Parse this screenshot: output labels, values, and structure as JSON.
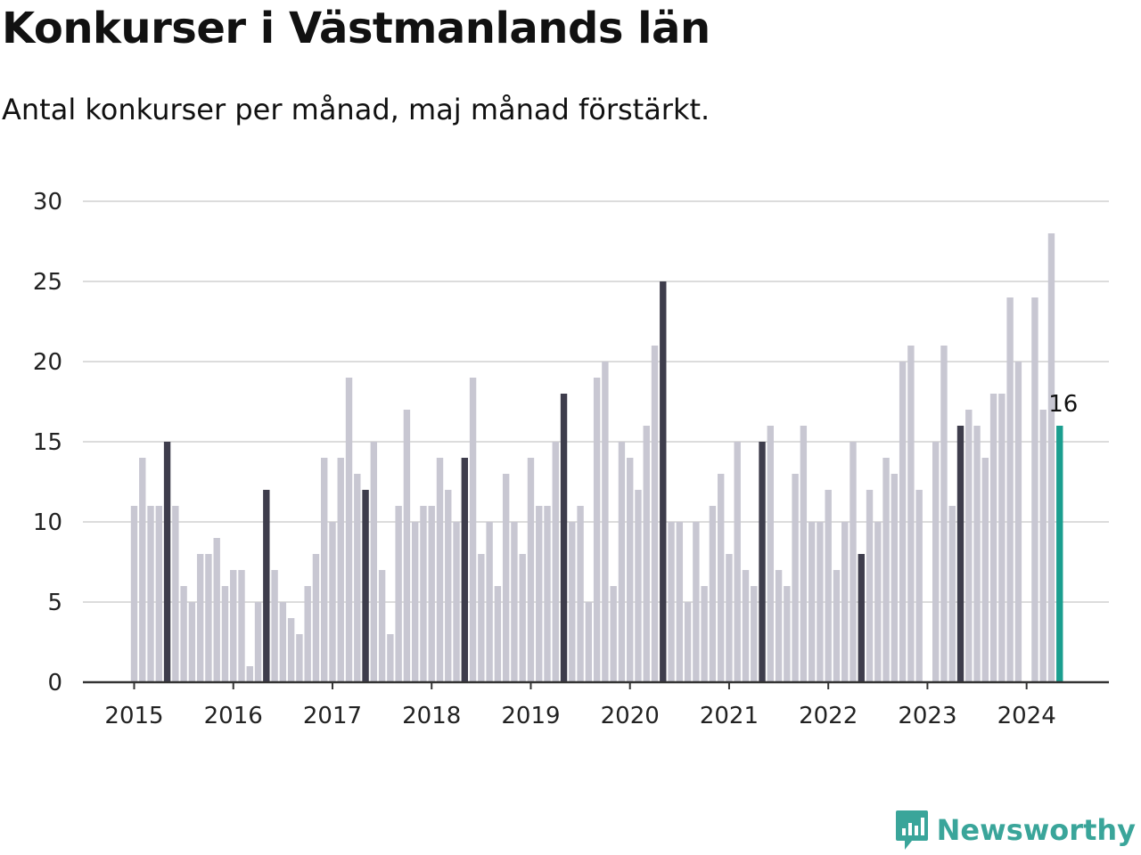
{
  "header": {
    "title": "Konkurser i Västmanlands län",
    "subtitle": "Antal konkurser per månad, maj månad förstärkt."
  },
  "brand": {
    "name": "Newsworthy",
    "icon": "newsworthy-logo-icon"
  },
  "colors": {
    "bar": "#c8c7d2",
    "highlight": "#3e3d4c",
    "current": "#1a9e8f",
    "grid": "#dcdcdc",
    "axis": "#333333",
    "brand": "#3aa59a"
  },
  "chart_data": {
    "type": "bar",
    "title": "Konkurser i Västmanlands län",
    "subtitle": "Antal konkurser per månad, maj månad förstärkt.",
    "xlabel": "",
    "ylabel": "",
    "ylim": [
      0,
      30
    ],
    "yticks": [
      "0",
      "5",
      "10",
      "15",
      "20",
      "25",
      "30"
    ],
    "xticks": [
      "2015",
      "2016",
      "2017",
      "2018",
      "2019",
      "2020",
      "2021",
      "2022",
      "2023",
      "2024"
    ],
    "grid": true,
    "highlight_month": 5,
    "annotation": {
      "label": "16",
      "index": 112
    },
    "series": [
      {
        "start": "2015-01",
        "values": [
          11,
          14,
          11,
          11,
          15,
          11,
          6,
          5,
          8,
          8,
          9,
          6,
          7,
          7,
          1,
          5,
          12,
          7,
          5,
          4,
          3,
          6,
          8,
          14,
          10,
          14,
          19,
          13,
          12,
          15,
          7,
          3,
          11,
          17,
          10,
          11,
          11,
          14,
          12,
          10,
          14,
          19,
          8,
          10,
          6,
          13,
          10,
          8,
          14,
          11,
          11,
          15,
          18,
          10,
          11,
          5,
          19,
          20,
          6,
          15,
          14,
          12,
          16,
          21,
          25,
          10,
          10,
          5,
          10,
          6,
          11,
          13,
          8,
          15,
          7,
          6,
          15,
          16,
          7,
          6,
          13,
          16,
          10,
          10,
          12,
          7,
          10,
          15,
          8,
          12,
          10,
          14,
          13,
          20,
          21,
          12,
          0,
          15,
          21,
          11,
          16,
          17,
          16,
          14,
          18,
          18,
          24,
          20,
          0,
          24,
          17,
          28,
          16
        ]
      }
    ]
  }
}
